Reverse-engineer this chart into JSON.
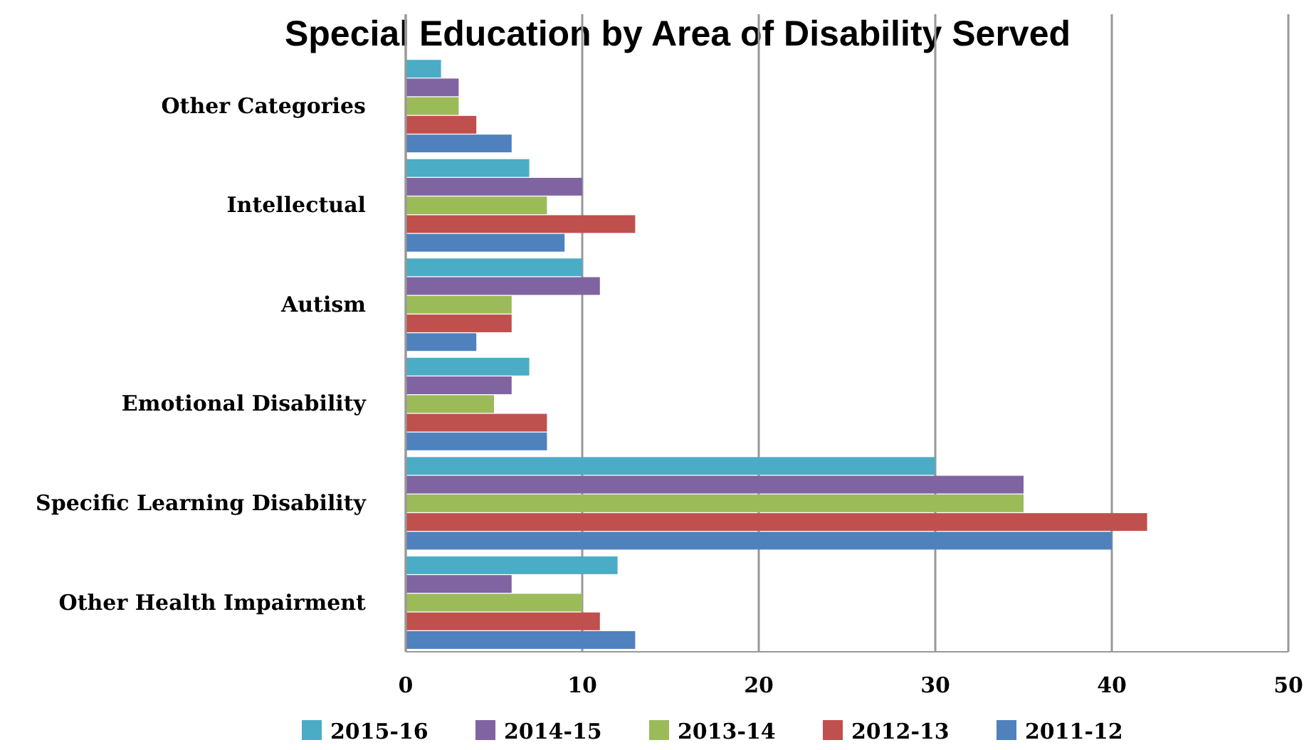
{
  "chart_data": {
    "type": "bar",
    "orientation": "horizontal",
    "title": "Special Education by Area of Disability Served",
    "categories": [
      "Other Categories",
      "Intellectual",
      "Autism",
      "Emotional Disability",
      "Specific Learning Disability",
      "Other Health Impairment"
    ],
    "series": [
      {
        "name": "2015-16",
        "color": "#4bacc6",
        "values": [
          2,
          7,
          10,
          7,
          30,
          12
        ]
      },
      {
        "name": "2014-15",
        "color": "#8064a2",
        "values": [
          3,
          10,
          11,
          6,
          35,
          6
        ]
      },
      {
        "name": "2013-14",
        "color": "#9bbb59",
        "values": [
          3,
          8,
          6,
          5,
          35,
          10
        ]
      },
      {
        "name": "2012-13",
        "color": "#c0504d",
        "values": [
          4,
          13,
          6,
          8,
          42,
          11
        ]
      },
      {
        "name": "2011-12",
        "color": "#4f81bd",
        "values": [
          6,
          9,
          4,
          8,
          40,
          13
        ]
      }
    ],
    "xlim": [
      0,
      50
    ],
    "xticks": [
      0,
      10,
      20,
      30,
      40,
      50
    ],
    "grid": "x",
    "legend": "bottom"
  }
}
